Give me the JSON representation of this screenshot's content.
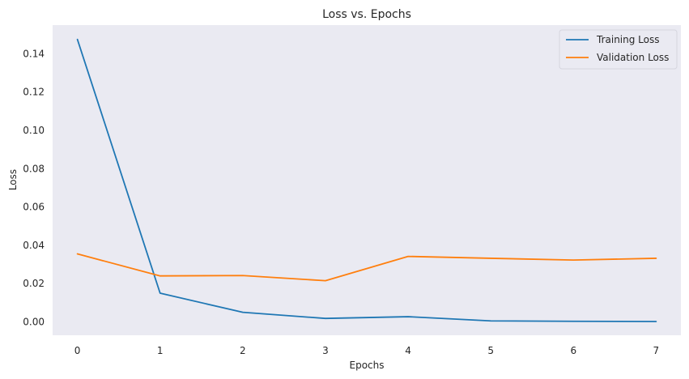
{
  "chart_data": {
    "type": "line",
    "title": "Loss vs. Epochs",
    "xlabel": "Epochs",
    "ylabel": "Loss",
    "x": [
      0,
      1,
      2,
      3,
      4,
      5,
      6,
      7
    ],
    "xlim": [
      -0.3,
      7.3
    ],
    "ylim": [
      -0.007,
      0.155
    ],
    "xticks": [
      0,
      1,
      2,
      3,
      4,
      5,
      6,
      7
    ],
    "xtick_labels": [
      "0",
      "1",
      "2",
      "3",
      "4",
      "5",
      "6",
      "7"
    ],
    "yticks": [
      0.0,
      0.02,
      0.04,
      0.06,
      0.08,
      0.1,
      0.12,
      0.14
    ],
    "ytick_labels": [
      "0.00",
      "0.02",
      "0.04",
      "0.06",
      "0.08",
      "0.10",
      "0.12",
      "0.14"
    ],
    "grid": false,
    "legend_position": "top-right",
    "background_color": "#eaeaf2",
    "series": [
      {
        "name": "Training Loss",
        "color": "#1f77b4",
        "values": [
          0.1475,
          0.015,
          0.005,
          0.0018,
          0.0027,
          0.0005,
          0.0003,
          0.0002
        ]
      },
      {
        "name": "Validation Loss",
        "color": "#ff7f0e",
        "values": [
          0.0355,
          0.024,
          0.0242,
          0.0215,
          0.0342,
          0.0332,
          0.0323,
          0.0332
        ]
      }
    ]
  }
}
